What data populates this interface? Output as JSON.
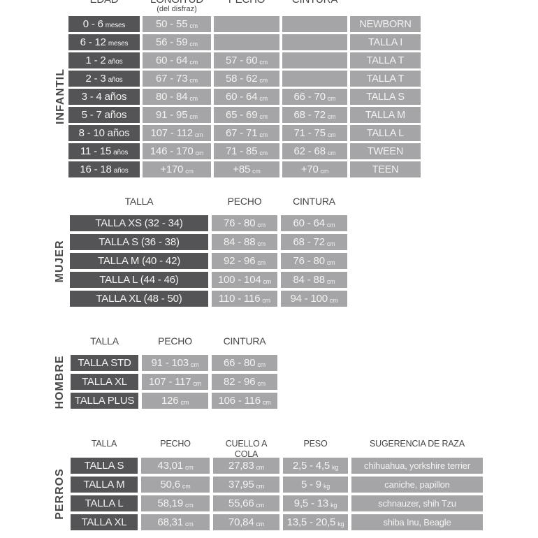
{
  "colors": {
    "background": "#ffffff",
    "dark_cell": "#545456",
    "light_cell": "#a5a5a7",
    "cell_text": "#f2f2f2",
    "heading_text": "#47474a"
  },
  "sections": [
    {
      "name": "INFANTIL",
      "headers": [
        {
          "label": "EDAD",
          "sublabel": ""
        },
        {
          "label": "LONGITUD",
          "sublabel": "(del disfraz)"
        },
        {
          "label": "PECHO",
          "sublabel": ""
        },
        {
          "label": "CINTURA",
          "sublabel": ""
        },
        {
          "label": "",
          "sublabel": ""
        }
      ],
      "rows": [
        {
          "cells": [
            {
              "t": "0 - 6",
              "u": "meses"
            },
            {
              "t": "50 - 55",
              "u": "cm"
            },
            {
              "t": "",
              "u": ""
            },
            {
              "t": "",
              "u": ""
            },
            {
              "t": "NEWBORN",
              "u": ""
            }
          ]
        },
        {
          "cells": [
            {
              "t": "6 - 12",
              "u": "meses"
            },
            {
              "t": "56 - 59",
              "u": "cm"
            },
            {
              "t": "",
              "u": ""
            },
            {
              "t": "",
              "u": ""
            },
            {
              "t": "TALLA I",
              "u": ""
            }
          ]
        },
        {
          "cells": [
            {
              "t": "1 - 2",
              "u": "años"
            },
            {
              "t": "60 - 64",
              "u": "cm"
            },
            {
              "t": "57 - 60",
              "u": "cm"
            },
            {
              "t": "",
              "u": ""
            },
            {
              "t": "TALLA T",
              "u": ""
            }
          ]
        },
        {
          "cells": [
            {
              "t": "2 - 3",
              "u": "años"
            },
            {
              "t": "67 - 73",
              "u": "cm"
            },
            {
              "t": "58 - 62",
              "u": "cm"
            },
            {
              "t": "",
              "u": ""
            },
            {
              "t": "TALLA T",
              "u": ""
            }
          ]
        },
        {
          "cells": [
            {
              "t": "3 - 4 años",
              "u": ""
            },
            {
              "t": "80 - 84",
              "u": "cm"
            },
            {
              "t": "60 - 64",
              "u": "cm"
            },
            {
              "t": "66 - 70",
              "u": "cm"
            },
            {
              "t": "TALLA S",
              "u": ""
            }
          ]
        },
        {
          "cells": [
            {
              "t": "5 - 7 años",
              "u": ""
            },
            {
              "t": "91 - 95",
              "u": "cm"
            },
            {
              "t": "65 - 69",
              "u": "cm"
            },
            {
              "t": "68 - 72",
              "u": "cm"
            },
            {
              "t": "TALLA M",
              "u": ""
            }
          ]
        },
        {
          "cells": [
            {
              "t": "8 - 10 años",
              "u": ""
            },
            {
              "t": "107 - 112",
              "u": "cm"
            },
            {
              "t": "67 - 71",
              "u": "cm"
            },
            {
              "t": "71 - 75",
              "u": "cm"
            },
            {
              "t": "TALLA L",
              "u": ""
            }
          ]
        },
        {
          "cells": [
            {
              "t": "11 - 15",
              "u": "años"
            },
            {
              "t": "146 - 170",
              "u": "cm"
            },
            {
              "t": "71 - 85",
              "u": "cm"
            },
            {
              "t": "62 - 68",
              "u": "cm"
            },
            {
              "t": "TWEEN",
              "u": ""
            }
          ]
        },
        {
          "cells": [
            {
              "t": "16 - 18",
              "u": "años"
            },
            {
              "t": "+170",
              "u": "cm"
            },
            {
              "t": "+85",
              "u": "cm"
            },
            {
              "t": "+70",
              "u": "cm"
            },
            {
              "t": "TEEN",
              "u": ""
            }
          ]
        }
      ]
    },
    {
      "name": "MUJER",
      "headers": [
        {
          "label": "TALLA",
          "sublabel": ""
        },
        {
          "label": "PECHO",
          "sublabel": ""
        },
        {
          "label": "CINTURA",
          "sublabel": ""
        }
      ],
      "rows": [
        {
          "cells": [
            {
              "t": "TALLA XS (32 - 34)",
              "u": ""
            },
            {
              "t": "76 - 80",
              "u": "cm"
            },
            {
              "t": "60 - 64",
              "u": "cm"
            }
          ]
        },
        {
          "cells": [
            {
              "t": "TALLA S (36 - 38)",
              "u": ""
            },
            {
              "t": "84 - 88",
              "u": "cm"
            },
            {
              "t": "68 - 72",
              "u": "cm"
            }
          ]
        },
        {
          "cells": [
            {
              "t": "TALLA M (40 - 42)",
              "u": ""
            },
            {
              "t": "92 - 96",
              "u": "cm"
            },
            {
              "t": "76 - 80",
              "u": "cm"
            }
          ]
        },
        {
          "cells": [
            {
              "t": "TALLA L (44 - 46)",
              "u": ""
            },
            {
              "t": "100 - 104",
              "u": "cm"
            },
            {
              "t": "84 - 88",
              "u": "cm"
            }
          ]
        },
        {
          "cells": [
            {
              "t": "TALLA XL (48 - 50)",
              "u": ""
            },
            {
              "t": "110 - 116",
              "u": "cm"
            },
            {
              "t": "94 - 100",
              "u": "cm"
            }
          ]
        }
      ]
    },
    {
      "name": "HOMBRE",
      "headers": [
        {
          "label": "TALLA",
          "sublabel": ""
        },
        {
          "label": "PECHO",
          "sublabel": ""
        },
        {
          "label": "CINTURA",
          "sublabel": ""
        }
      ],
      "rows": [
        {
          "cells": [
            {
              "t": "TALLA STD",
              "u": ""
            },
            {
              "t": "91 - 103",
              "u": "cm"
            },
            {
              "t": "66 - 80",
              "u": "cm"
            }
          ]
        },
        {
          "cells": [
            {
              "t": "TALLA XL",
              "u": ""
            },
            {
              "t": "107 - 117",
              "u": "cm"
            },
            {
              "t": "82 - 96",
              "u": "cm"
            }
          ]
        },
        {
          "cells": [
            {
              "t": "TALLA PLUS",
              "u": ""
            },
            {
              "t": "126",
              "u": "cm"
            },
            {
              "t": "106 - 116",
              "u": "cm"
            }
          ]
        }
      ]
    },
    {
      "name": "PERROS",
      "headers": [
        {
          "label": "TALLA",
          "sublabel": ""
        },
        {
          "label": "PECHO",
          "sublabel": ""
        },
        {
          "label": "CUELLO A COLA",
          "sublabel": ""
        },
        {
          "label": "PESO",
          "sublabel": ""
        },
        {
          "label": "SUGERENCIA DE RAZA",
          "sublabel": ""
        }
      ],
      "rows": [
        {
          "cells": [
            {
              "t": "TALLA S",
              "u": ""
            },
            {
              "t": "43,01",
              "u": "cm"
            },
            {
              "t": "27,83",
              "u": "cm"
            },
            {
              "t": "2,5 - 4,5",
              "u": "kg"
            },
            {
              "t": "chihuahua, yorkshire terrier",
              "u": ""
            }
          ]
        },
        {
          "cells": [
            {
              "t": "TALLA M",
              "u": ""
            },
            {
              "t": "50,6",
              "u": "cm"
            },
            {
              "t": "37,95",
              "u": "cm"
            },
            {
              "t": "5 - 9",
              "u": "kg"
            },
            {
              "t": "caniche, papillon",
              "u": ""
            }
          ]
        },
        {
          "cells": [
            {
              "t": "TALLA L",
              "u": ""
            },
            {
              "t": "58,19",
              "u": "cm"
            },
            {
              "t": "55,66",
              "u": "cm"
            },
            {
              "t": "9,5 - 13",
              "u": "kg"
            },
            {
              "t": "schnauzer, shih Tzu",
              "u": ""
            }
          ]
        },
        {
          "cells": [
            {
              "t": "TALLA XL",
              "u": ""
            },
            {
              "t": "68,31",
              "u": "cm"
            },
            {
              "t": "70,84",
              "u": "cm"
            },
            {
              "t": "13,5 - 20,5",
              "u": "kg"
            },
            {
              "t": "shiba Inu, Beagle",
              "u": ""
            }
          ]
        }
      ]
    }
  ]
}
